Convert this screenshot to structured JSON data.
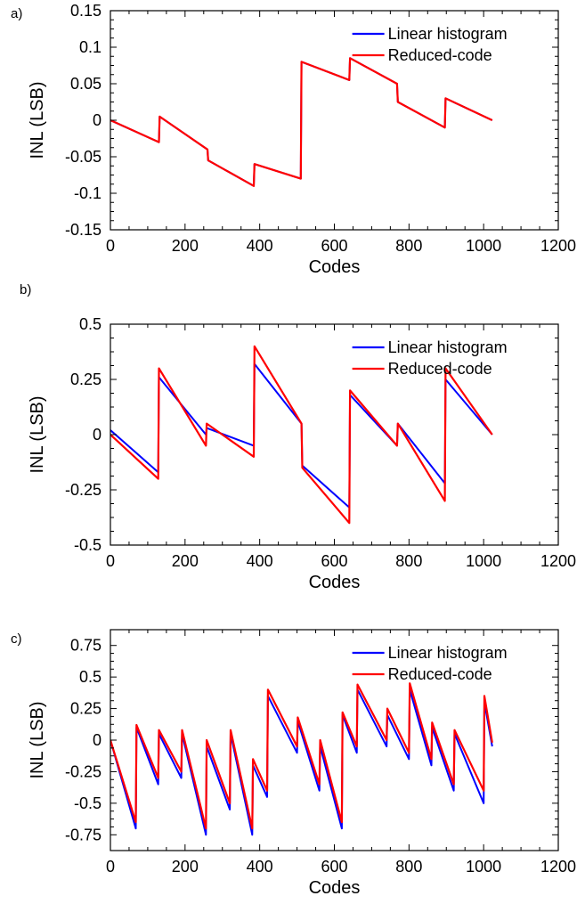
{
  "chart_data": [
    {
      "panel": "a)",
      "type": "line",
      "xlabel": "Codes",
      "ylabel": "INL (LSB)",
      "xlim": [
        0,
        1200
      ],
      "ylim": [
        -0.15,
        0.15
      ],
      "xticks": [
        "0",
        "200",
        "400",
        "600",
        "800",
        "1000",
        "1200"
      ],
      "yticks": [
        "-0.15",
        "-0.1",
        "-0.05",
        "0",
        "0.05",
        "0.1",
        "0.15"
      ],
      "grid": false,
      "legend_position": "top-right",
      "series": [
        {
          "name": "Linear histogram",
          "color": "#0000ff",
          "x": [
            0,
            130,
            132,
            260,
            262,
            384,
            386,
            510,
            512,
            640,
            642,
            768,
            770,
            896,
            898,
            1023
          ],
          "y": [
            0,
            -0.03,
            0.005,
            -0.04,
            -0.055,
            -0.09,
            -0.06,
            -0.08,
            0.08,
            0.055,
            0.085,
            0.05,
            0.025,
            -0.01,
            0.03,
            0.0
          ]
        },
        {
          "name": "Reduced-code",
          "color": "#ff0000",
          "x": [
            0,
            130,
            132,
            260,
            262,
            384,
            386,
            510,
            512,
            640,
            642,
            768,
            770,
            896,
            898,
            1023
          ],
          "y": [
            0,
            -0.03,
            0.005,
            -0.04,
            -0.055,
            -0.09,
            -0.06,
            -0.08,
            0.08,
            0.055,
            0.085,
            0.05,
            0.025,
            -0.01,
            0.03,
            0.0
          ]
        }
      ]
    },
    {
      "panel": "b)",
      "type": "line",
      "xlabel": "Codes",
      "ylabel": "INL (LSB)",
      "xlim": [
        0,
        1200
      ],
      "ylim": [
        -0.5,
        0.5
      ],
      "xticks": [
        "0",
        "200",
        "400",
        "600",
        "800",
        "1000",
        "1200"
      ],
      "yticks": [
        "-0.5",
        "-0.25",
        "0",
        "0.25",
        "0.5"
      ],
      "grid": false,
      "legend_position": "top-right",
      "series": [
        {
          "name": "Linear histogram",
          "color": "#0000ff",
          "x": [
            0,
            128,
            130,
            256,
            258,
            384,
            386,
            512,
            514,
            640,
            642,
            768,
            770,
            896,
            898,
            1023
          ],
          "y": [
            0.02,
            -0.17,
            0.26,
            0.0,
            0.03,
            -0.05,
            0.32,
            0.05,
            -0.14,
            -0.33,
            0.18,
            -0.05,
            0.05,
            -0.22,
            0.25,
            0.0
          ]
        },
        {
          "name": "Reduced-code",
          "color": "#ff0000",
          "x": [
            0,
            128,
            130,
            256,
            258,
            384,
            386,
            512,
            514,
            640,
            642,
            768,
            770,
            896,
            898,
            1023
          ],
          "y": [
            0.0,
            -0.2,
            0.3,
            -0.05,
            0.05,
            -0.1,
            0.4,
            0.05,
            -0.15,
            -0.4,
            0.2,
            -0.05,
            0.05,
            -0.3,
            0.3,
            0.0
          ]
        }
      ]
    },
    {
      "panel": "c)",
      "type": "line",
      "xlabel": "Codes",
      "ylabel": "INL (LSB)",
      "xlim": [
        0,
        1200
      ],
      "ylim": [
        -0.875,
        0.875
      ],
      "xticks": [
        "0",
        "200",
        "400",
        "600",
        "800",
        "1000",
        "1200"
      ],
      "yticks": [
        "-0.75",
        "-0.5",
        "-0.25",
        "0",
        "0.25",
        "0.5",
        "0.75"
      ],
      "grid": false,
      "legend_position": "top-right",
      "series": [
        {
          "name": "Linear histogram",
          "color": "#0000ff",
          "x": [
            0,
            68,
            70,
            128,
            130,
            190,
            192,
            256,
            258,
            320,
            322,
            380,
            382,
            420,
            422,
            500,
            502,
            560,
            562,
            620,
            622,
            660,
            662,
            740,
            742,
            800,
            802,
            860,
            862,
            920,
            922,
            1000,
            1002,
            1023
          ],
          "y": [
            0,
            -0.7,
            0.1,
            -0.35,
            0.05,
            -0.3,
            0.05,
            -0.75,
            -0.05,
            -0.55,
            0.05,
            -0.75,
            -0.2,
            -0.45,
            0.35,
            -0.1,
            0.15,
            -0.4,
            -0.05,
            -0.7,
            0.2,
            -0.1,
            0.4,
            -0.05,
            0.2,
            -0.15,
            0.4,
            -0.2,
            0.1,
            -0.4,
            0.05,
            -0.5,
            0.3,
            -0.05
          ]
        },
        {
          "name": "Reduced-code",
          "color": "#ff0000",
          "x": [
            0,
            68,
            70,
            128,
            130,
            190,
            192,
            256,
            258,
            320,
            322,
            380,
            382,
            420,
            422,
            500,
            502,
            560,
            562,
            620,
            622,
            660,
            662,
            740,
            742,
            800,
            802,
            860,
            862,
            920,
            922,
            1000,
            1002,
            1023
          ],
          "y": [
            0,
            -0.65,
            0.12,
            -0.3,
            0.08,
            -0.25,
            0.08,
            -0.7,
            0.0,
            -0.5,
            0.08,
            -0.7,
            -0.15,
            -0.4,
            0.4,
            -0.05,
            0.18,
            -0.35,
            0.0,
            -0.65,
            0.22,
            -0.05,
            0.44,
            0.0,
            0.25,
            -0.1,
            0.45,
            -0.15,
            0.14,
            -0.35,
            0.08,
            -0.4,
            0.35,
            -0.02
          ]
        }
      ]
    }
  ]
}
